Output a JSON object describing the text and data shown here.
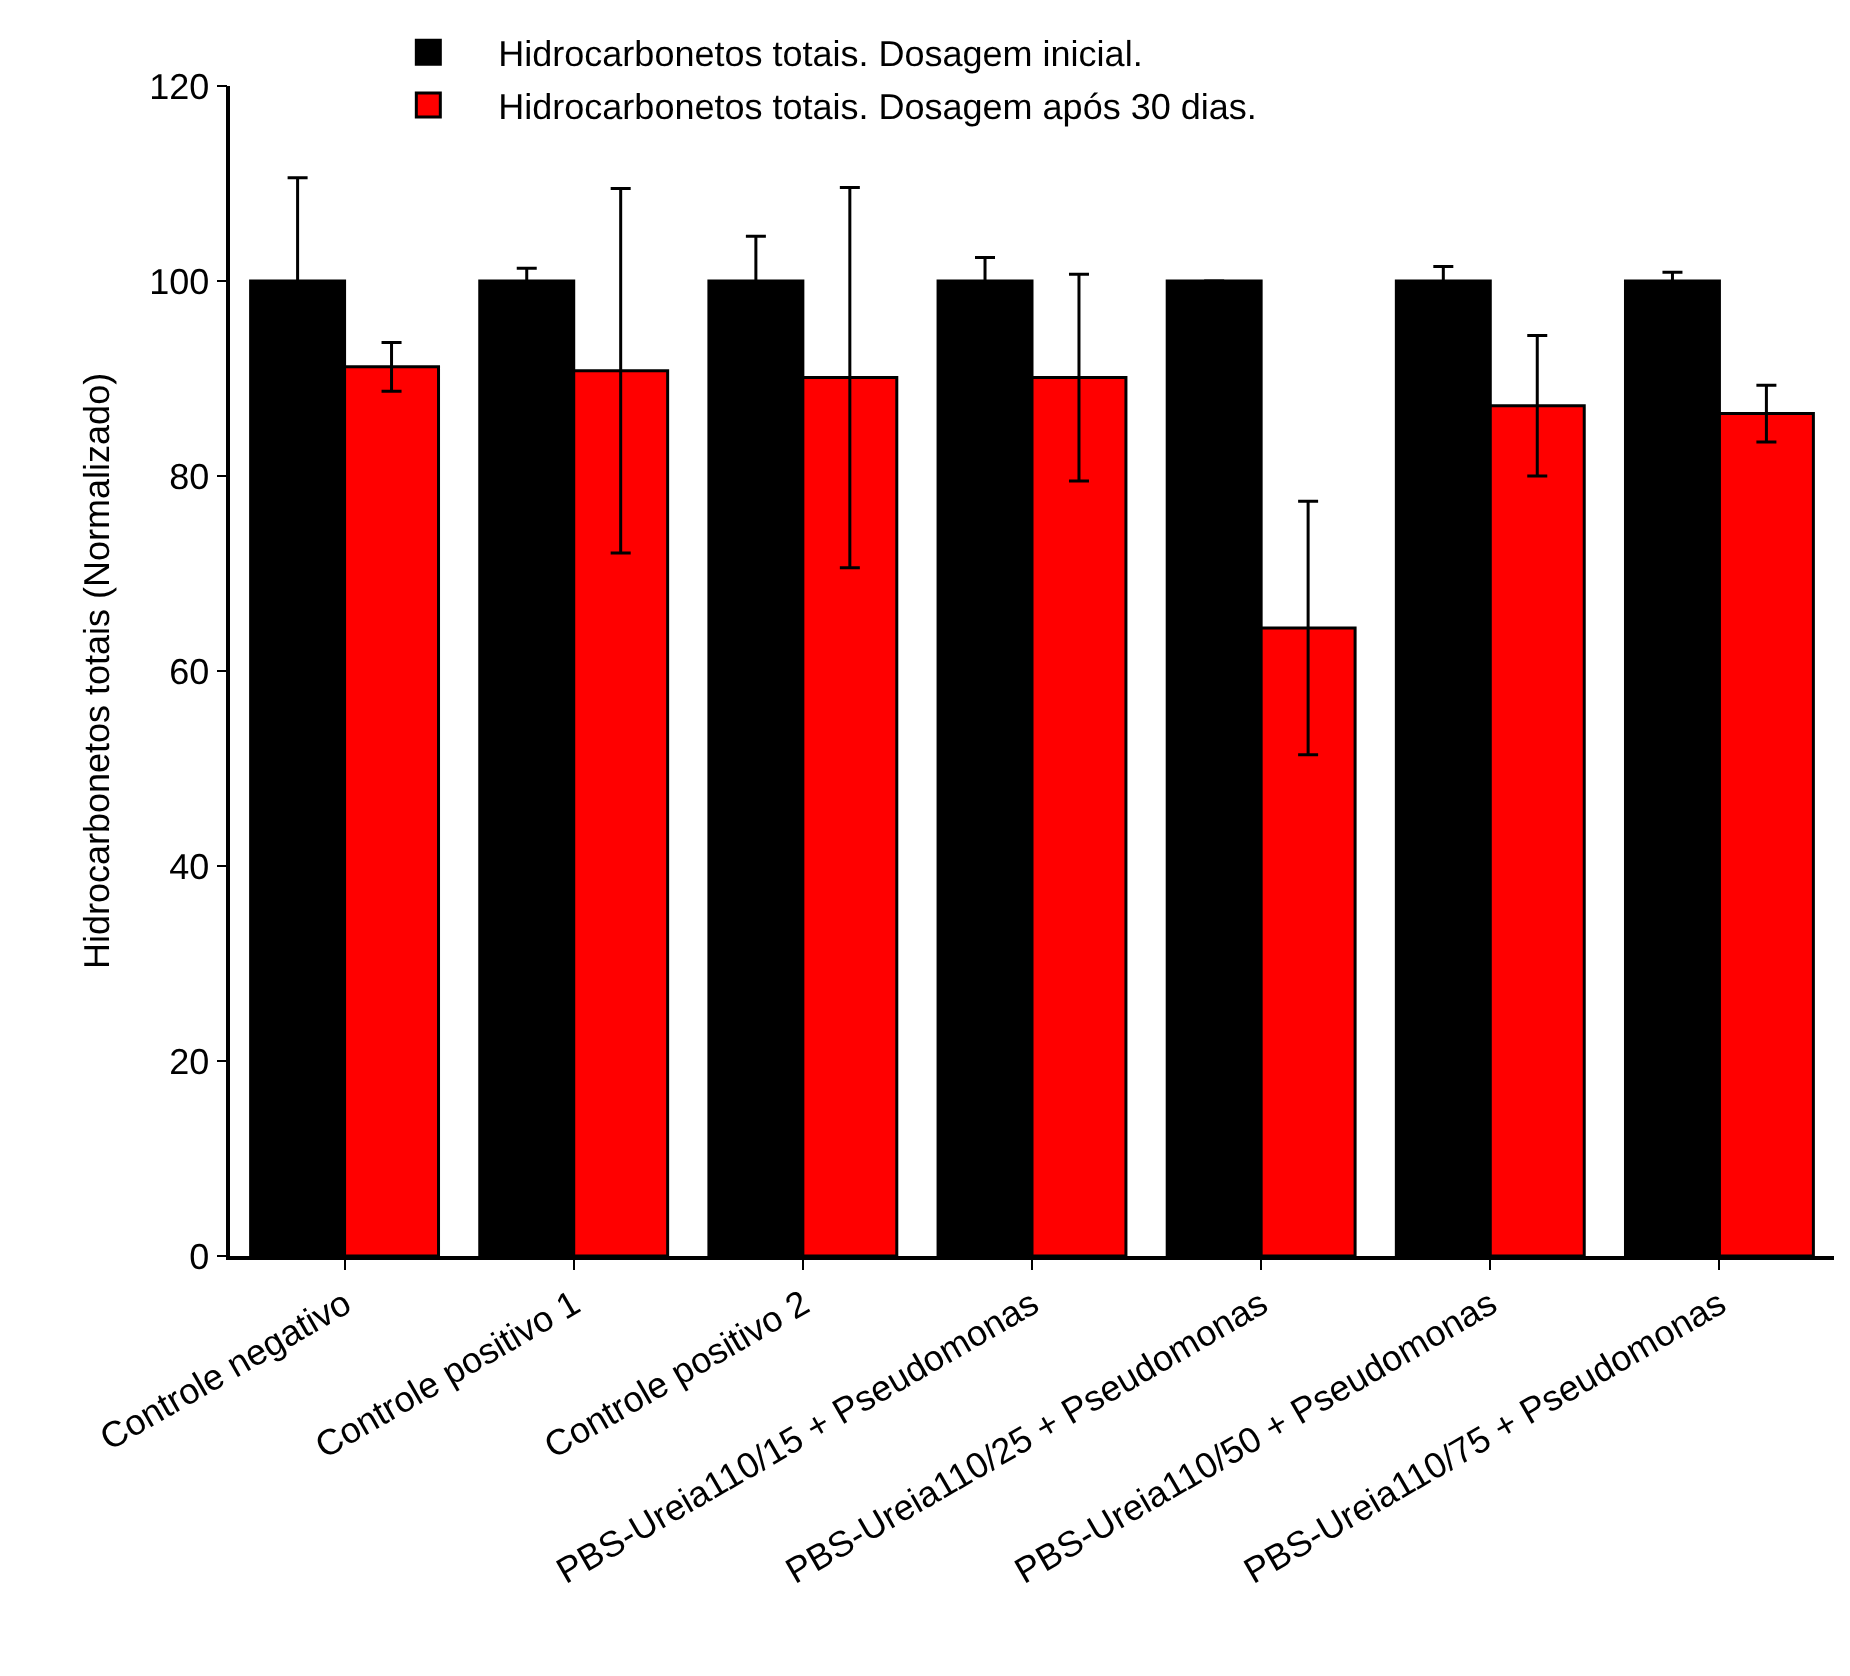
{
  "chart_data": {
    "type": "bar",
    "ylabel": "Hidrocarbonetos totais (Normalizado)",
    "categories": [
      "Controle negativo",
      "Controle positivo 1",
      "Controle positivo 2",
      "PBS-Ureia110/15 + Pseudomonas",
      "PBS-Ureia110/25 + Pseudomonas",
      "PBS-Ureia110/50 + Pseudomonas",
      "PBS-Ureia110/75 + Pseudomonas"
    ],
    "series": [
      {
        "name": "Hidrocarbonetos totais. Dosagem inicial.",
        "color": "#000000",
        "values": [
          100,
          100,
          100,
          100,
          100,
          100,
          100
        ],
        "errors": [
          10.6,
          1.3,
          4.6,
          2.4,
          null,
          1.5,
          0.9
        ]
      },
      {
        "name": "Hidrocarbonetos totais. Dosagem após 30 dias.",
        "color": "#ff0000",
        "values": [
          91.2,
          90.8,
          90.1,
          90.1,
          64.4,
          87.2,
          86.4
        ],
        "errors": [
          2.5,
          18.7,
          19.5,
          10.6,
          13.0,
          7.2,
          2.9
        ]
      }
    ],
    "ylim": [
      0,
      120
    ],
    "yticks": [
      0,
      20,
      40,
      60,
      80,
      100,
      120
    ],
    "grid": false,
    "legend": "top"
  }
}
